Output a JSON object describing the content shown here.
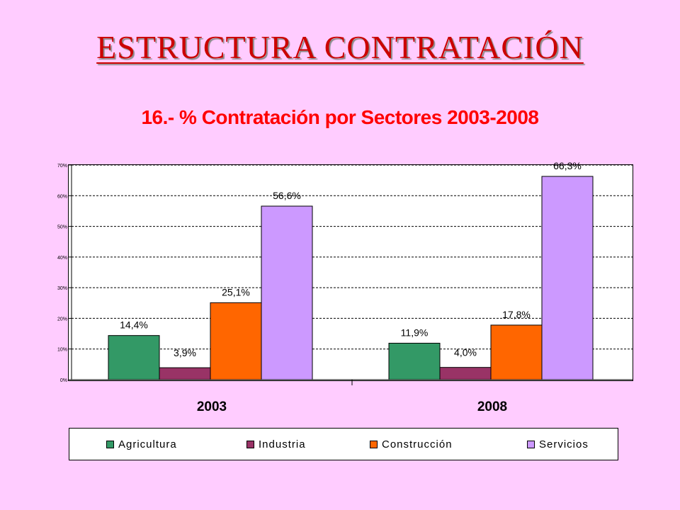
{
  "slide": {
    "title": "ESTRUCTURA CONTRATACIÓN"
  },
  "chart_data": {
    "type": "bar",
    "title": "16.- % Contratación por Sectores 2003-2008",
    "ylabel": "",
    "xlabel": "",
    "categories": [
      "2003",
      "2008"
    ],
    "series": [
      {
        "name": "Agricultura",
        "color": "#339966",
        "values": [
          14.4,
          11.9
        ],
        "labels": [
          "14,4%",
          "11,9%"
        ]
      },
      {
        "name": "Industria",
        "color": "#993366",
        "values": [
          3.9,
          4.0
        ],
        "labels": [
          "3,9%",
          "4,0%"
        ]
      },
      {
        "name": "Construcción",
        "color": "#ff6600",
        "values": [
          25.1,
          17.8
        ],
        "labels": [
          "25,1%",
          "17,8%"
        ]
      },
      {
        "name": "Servicios",
        "color": "#cc99ff",
        "values": [
          56.6,
          66.3
        ],
        "labels": [
          "56,6%",
          "66,3%"
        ]
      }
    ],
    "ylim": [
      0,
      70
    ],
    "yticks": [
      "0%",
      "10%",
      "20%",
      "30%",
      "40%",
      "50%",
      "60%",
      "70%"
    ],
    "grid": true,
    "legend_position": "bottom"
  }
}
